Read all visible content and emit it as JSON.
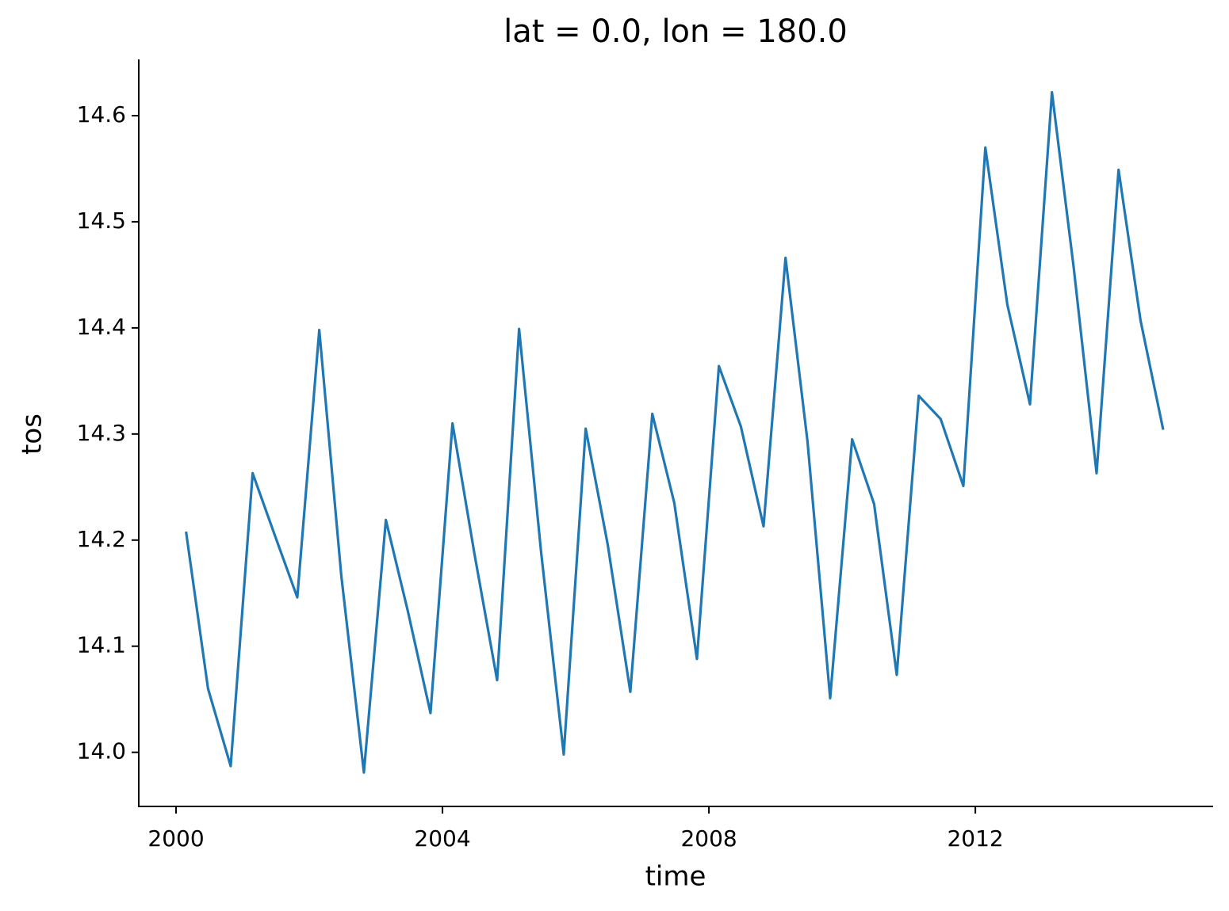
{
  "chart_data": {
    "type": "line",
    "title": "lat = 0.0, lon = 180.0",
    "x_label": "time",
    "y_label": "tos",
    "x": [
      2000.15,
      2000.48,
      2000.82,
      2001.15,
      2001.48,
      2001.82,
      2002.15,
      2002.48,
      2002.82,
      2003.15,
      2003.48,
      2003.82,
      2004.15,
      2004.48,
      2004.82,
      2005.15,
      2005.48,
      2005.82,
      2006.15,
      2006.48,
      2006.82,
      2007.15,
      2007.48,
      2007.82,
      2008.15,
      2008.48,
      2008.82,
      2009.15,
      2009.48,
      2009.82,
      2010.15,
      2010.48,
      2010.82,
      2011.15,
      2011.48,
      2011.82,
      2012.15,
      2012.48,
      2012.82,
      2013.15,
      2013.48,
      2013.82,
      2014.15,
      2014.48,
      2014.82
    ],
    "series": [
      {
        "name": "tos",
        "color": "#1f77b4",
        "values": [
          14.208,
          14.06,
          13.987,
          14.263,
          14.205,
          14.146,
          14.398,
          14.167,
          13.981,
          14.219,
          14.133,
          14.037,
          14.31,
          14.187,
          14.068,
          14.399,
          14.189,
          13.998,
          14.305,
          14.196,
          14.057,
          14.319,
          14.235,
          14.088,
          14.364,
          14.307,
          14.213,
          14.466,
          14.293,
          14.051,
          14.295,
          14.234,
          14.073,
          14.336,
          14.314,
          14.251,
          14.57,
          14.422,
          14.328,
          14.622,
          14.455,
          14.263,
          14.549,
          14.407,
          14.304
        ]
      }
    ],
    "xlim": [
      1999.44,
      2015.57
    ],
    "xticks": [
      2000,
      2004,
      2008,
      2012
    ],
    "ylim": [
      13.949,
      14.653
    ],
    "yticks": [
      {
        "value": 14.0,
        "label": "14.0"
      },
      {
        "value": 14.1,
        "label": "14.1"
      },
      {
        "value": 14.2,
        "label": "14.2"
      },
      {
        "value": 14.3,
        "label": "14.3"
      },
      {
        "value": 14.4,
        "label": "14.4"
      },
      {
        "value": 14.5,
        "label": "14.5"
      },
      {
        "value": 14.6,
        "label": "14.6"
      }
    ],
    "grid": false
  }
}
